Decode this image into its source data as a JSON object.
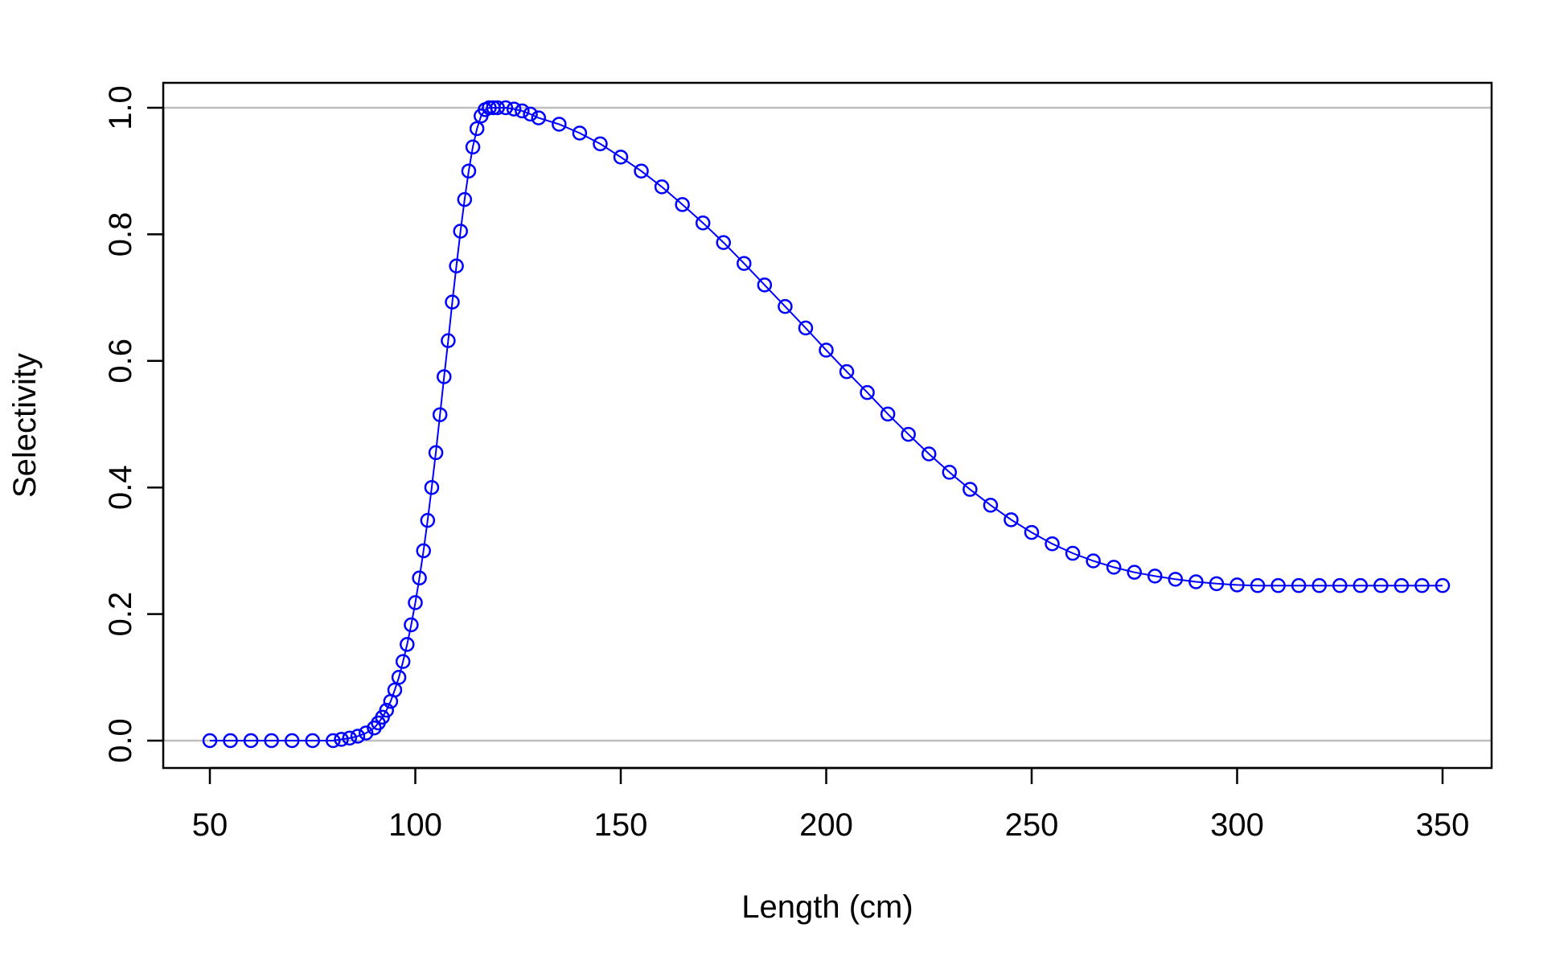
{
  "chart_data": {
    "type": "line",
    "xlabel": "Length (cm)",
    "ylabel": "Selectivity",
    "xlim": [
      50,
      350
    ],
    "ylim": [
      0,
      1
    ],
    "x_ticks": [
      {
        "value": 50,
        "label": "50"
      },
      {
        "value": 100,
        "label": "100"
      },
      {
        "value": 150,
        "label": "150"
      },
      {
        "value": 200,
        "label": "200"
      },
      {
        "value": 250,
        "label": "250"
      },
      {
        "value": 300,
        "label": "300"
      },
      {
        "value": 350,
        "label": "350"
      }
    ],
    "y_ticks": [
      {
        "value": 0,
        "label": "0.0"
      },
      {
        "value": 0.2,
        "label": "0.2"
      },
      {
        "value": 0.4,
        "label": "0.4"
      },
      {
        "value": 0.6,
        "label": "0.6"
      },
      {
        "value": 0.8,
        "label": "0.8"
      },
      {
        "value": 1,
        "label": "1.0"
      }
    ],
    "reference_lines": [
      0,
      1
    ],
    "reference_line_color": "#bebebe",
    "series_color": "#0000ff",
    "marker": "open-circle",
    "grid": false,
    "x": [
      50,
      55,
      60,
      65,
      70,
      75,
      80,
      82,
      84,
      86,
      88,
      90,
      91,
      92,
      93,
      94,
      95,
      96,
      97,
      98,
      99,
      100,
      101,
      102,
      103,
      104,
      105,
      106,
      107,
      108,
      109,
      110,
      111,
      112,
      113,
      114,
      115,
      116,
      117,
      118,
      119,
      120,
      122,
      124,
      126,
      128,
      130,
      135,
      140,
      145,
      150,
      155,
      160,
      165,
      170,
      175,
      180,
      185,
      190,
      195,
      200,
      205,
      210,
      215,
      220,
      225,
      230,
      235,
      240,
      245,
      250,
      255,
      260,
      265,
      270,
      275,
      280,
      285,
      290,
      295,
      300,
      305,
      310,
      315,
      320,
      325,
      330,
      335,
      340,
      345,
      350
    ],
    "y": [
      0.0,
      0.0,
      0.0,
      0.0,
      0.0,
      0.0,
      0.0,
      0.002,
      0.004,
      0.007,
      0.012,
      0.02,
      0.028,
      0.037,
      0.048,
      0.062,
      0.08,
      0.1,
      0.125,
      0.152,
      0.183,
      0.218,
      0.257,
      0.3,
      0.348,
      0.4,
      0.455,
      0.515,
      0.575,
      0.632,
      0.693,
      0.75,
      0.805,
      0.855,
      0.9,
      0.938,
      0.967,
      0.987,
      0.997,
      1.0,
      1.0,
      1.0,
      1.0,
      0.998,
      0.995,
      0.99,
      0.984,
      0.974,
      0.96,
      0.943,
      0.922,
      0.9,
      0.875,
      0.847,
      0.818,
      0.787,
      0.754,
      0.72,
      0.686,
      0.652,
      0.617,
      0.583,
      0.55,
      0.516,
      0.484,
      0.453,
      0.424,
      0.397,
      0.372,
      0.349,
      0.329,
      0.311,
      0.296,
      0.284,
      0.274,
      0.266,
      0.26,
      0.255,
      0.251,
      0.248,
      0.246,
      0.245,
      0.245,
      0.245,
      0.245,
      0.245,
      0.245,
      0.245,
      0.245,
      0.245,
      0.245
    ]
  }
}
